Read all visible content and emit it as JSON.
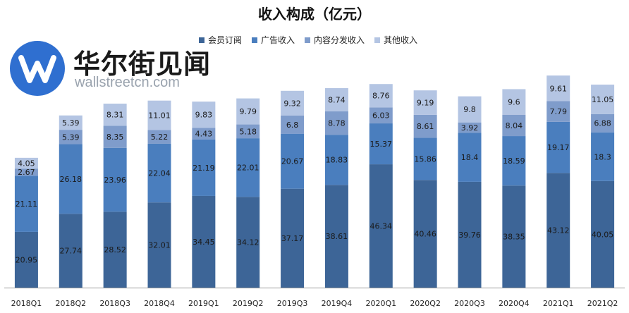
{
  "chart_data": {
    "type": "bar",
    "stacked": true,
    "title": "收入构成（亿元）",
    "xlabel": "",
    "ylabel": "",
    "categories": [
      "2018Q1",
      "2018Q2",
      "2018Q3",
      "2018Q4",
      "2019Q1",
      "2019Q2",
      "2019Q3",
      "2019Q4",
      "2020Q1",
      "2020Q2",
      "2020Q3",
      "2020Q4",
      "2021Q1",
      "2021Q2"
    ],
    "series": [
      {
        "name": "会员订阅",
        "color": "#3d6597",
        "label_color": "#1a1a1a",
        "values": [
          20.95,
          27.74,
          28.52,
          32.01,
          34.45,
          34.12,
          37.17,
          38.61,
          46.34,
          40.46,
          39.76,
          38.35,
          43.12,
          40.05
        ]
      },
      {
        "name": "广告收入",
        "color": "#4a7ebe",
        "label_color": "#1a1a1a",
        "values": [
          21.11,
          26.18,
          23.96,
          22.04,
          21.19,
          22.01,
          20.67,
          18.83,
          15.37,
          15.86,
          18.4,
          18.59,
          19.17,
          18.3
        ]
      },
      {
        "name": "内容分发收入",
        "color": "#7f9ccb",
        "label_color": "#1a1a1a",
        "values": [
          2.67,
          5.39,
          8.35,
          5.22,
          4.43,
          5.18,
          6.8,
          8.78,
          6.03,
          8.61,
          3.92,
          8.04,
          7.79,
          6.88
        ]
      },
      {
        "name": "其他收入",
        "color": "#b4c5e3",
        "label_color": "#1a1a1a",
        "values": [
          4.05,
          5.39,
          8.31,
          11.01,
          9.83,
          9.79,
          9.32,
          8.74,
          8.76,
          9.19,
          9.8,
          9.6,
          9.61,
          11.05
        ]
      }
    ],
    "ylim": [
      0,
      80
    ],
    "grid": false,
    "legend_position": "top"
  },
  "watermark": {
    "name": "华尔街见闻",
    "url": "wallstreetcn.com",
    "icon": "wallstreetcn-logo-icon"
  }
}
